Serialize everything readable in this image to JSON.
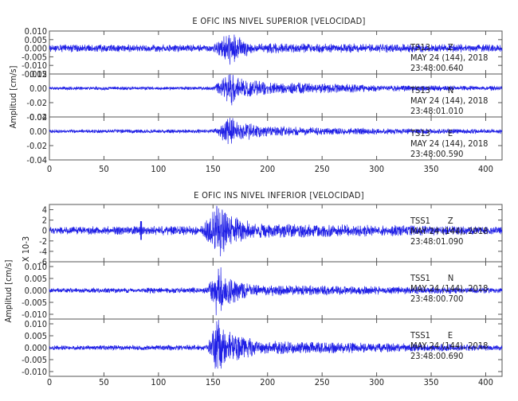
{
  "colors": {
    "trace": "#1f1fe6",
    "frame": "#555555",
    "text": "#222222"
  },
  "chart_data": [
    {
      "type": "line",
      "title": "E OFIC INS NIVEL SUPERIOR [VELOCIDAD]",
      "ylabel": "Amplitud [cm/s]",
      "xlim": [
        0,
        415
      ],
      "xticks": [
        "0",
        "50",
        "100",
        "150",
        "200",
        "250",
        "300",
        "350",
        "400"
      ],
      "panels": [
        {
          "name": "TS13 Z",
          "station": "TS13",
          "component": "Z",
          "date": "MAY 24 (144), 2018",
          "time": "23:48:00.640",
          "ylim": [
            -0.015,
            0.01
          ],
          "yticks": [
            "0.010",
            "0.005",
            "0.000",
            "-0.005",
            "-0.010",
            "-0.015"
          ],
          "envelope": [
            {
              "t": 0,
              "a": 0.0018
            },
            {
              "t": 150,
              "a": 0.0018
            },
            {
              "t": 160,
              "a": 0.006
            },
            {
              "t": 166,
              "a": 0.01
            },
            {
              "t": 172,
              "a": 0.006
            },
            {
              "t": 185,
              "a": 0.0025
            },
            {
              "t": 415,
              "a": 0.0018
            }
          ]
        },
        {
          "name": "TS13 N",
          "station": "TS13",
          "component": "N",
          "date": "MAY 24 (144), 2018",
          "time": "23:48:01.010",
          "ylim": [
            -0.04,
            0.02
          ],
          "yticks": [
            "0.02",
            "0.00",
            "-0.02",
            "-0.04"
          ],
          "envelope": [
            {
              "t": 0,
              "a": 0.002
            },
            {
              "t": 150,
              "a": 0.002
            },
            {
              "t": 160,
              "a": 0.012
            },
            {
              "t": 166,
              "a": 0.022
            },
            {
              "t": 175,
              "a": 0.012
            },
            {
              "t": 200,
              "a": 0.007
            },
            {
              "t": 250,
              "a": 0.006
            },
            {
              "t": 300,
              "a": 0.004
            },
            {
              "t": 415,
              "a": 0.0025
            }
          ]
        },
        {
          "name": "TS13 E",
          "station": "TS13",
          "component": "E",
          "date": "MAY 24 (144), 2018",
          "time": "23:48:00.590",
          "ylim": [
            -0.04,
            0.02
          ],
          "yticks": [
            "0.02",
            "0.00",
            "-0.02",
            "-0.04"
          ],
          "envelope": [
            {
              "t": 0,
              "a": 0.002
            },
            {
              "t": 150,
              "a": 0.0025
            },
            {
              "t": 160,
              "a": 0.012
            },
            {
              "t": 165,
              "a": 0.02
            },
            {
              "t": 172,
              "a": 0.012
            },
            {
              "t": 200,
              "a": 0.006
            },
            {
              "t": 260,
              "a": 0.004
            },
            {
              "t": 415,
              "a": 0.0025
            }
          ]
        }
      ]
    },
    {
      "type": "line",
      "title": "E OFIC INS NIVEL INFERIOR [VELOCIDAD]",
      "ylabel": "Amplitud [cm/s]",
      "xlim": [
        0,
        415
      ],
      "xticks": [
        "0",
        "50",
        "100",
        "150",
        "200",
        "250",
        "300",
        "350",
        "400"
      ],
      "panels": [
        {
          "name": "TSS1 Z",
          "station": "TSS1",
          "component": "Z",
          "date": "MAY 24 (144), 2018",
          "time": "23:48:01.090",
          "ylim": [
            -6,
            5
          ],
          "yticks": [
            "4",
            "2",
            "0",
            "-2",
            "-4",
            "-6"
          ],
          "scale_label": "X 10-3",
          "envelope": [
            {
              "t": 0,
              "a": 0.6
            },
            {
              "t": 140,
              "a": 0.8
            },
            {
              "t": 148,
              "a": 2.5
            },
            {
              "t": 155,
              "a": 4.5
            },
            {
              "t": 165,
              "a": 2.5
            },
            {
              "t": 190,
              "a": 1.2
            },
            {
              "t": 415,
              "a": 0.6
            }
          ],
          "spikes": [
            {
              "t": 84,
              "a": 1.8
            }
          ]
        },
        {
          "name": "TSS1 N",
          "station": "TSS1",
          "component": "N",
          "date": "MAY 24 (144), 2018",
          "time": "23:48:00.700",
          "ylim": [
            -0.012,
            0.012
          ],
          "yticks": [
            "0.010",
            "0.005",
            "0.000",
            "-0.005",
            "-0.010"
          ],
          "envelope": [
            {
              "t": 0,
              "a": 0.0008
            },
            {
              "t": 145,
              "a": 0.001
            },
            {
              "t": 150,
              "a": 0.006
            },
            {
              "t": 154,
              "a": 0.011
            },
            {
              "t": 160,
              "a": 0.006
            },
            {
              "t": 185,
              "a": 0.002
            },
            {
              "t": 415,
              "a": 0.0009
            }
          ]
        },
        {
          "name": "TSS1 E",
          "station": "TSS1",
          "component": "E",
          "date": "MAY 24 (144), 2018",
          "time": "23:48:00.690",
          "ylim": [
            -0.012,
            0.012
          ],
          "yticks": [
            "0.010",
            "0.005",
            "0.000",
            "-0.005",
            "-0.010"
          ],
          "envelope": [
            {
              "t": 0,
              "a": 0.0008
            },
            {
              "t": 145,
              "a": 0.001
            },
            {
              "t": 150,
              "a": 0.006
            },
            {
              "t": 154,
              "a": 0.012
            },
            {
              "t": 160,
              "a": 0.006
            },
            {
              "t": 190,
              "a": 0.0025
            },
            {
              "t": 415,
              "a": 0.0009
            }
          ]
        }
      ]
    }
  ]
}
